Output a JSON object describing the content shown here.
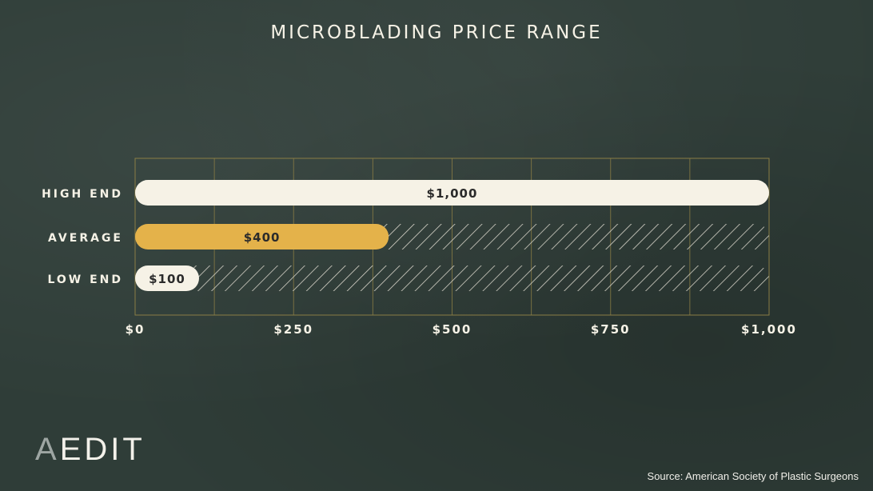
{
  "chart_data": {
    "type": "bar",
    "title": "MICROBLADING PRICE RANGE",
    "categories": [
      "HIGH END",
      "AVERAGE",
      "LOW END"
    ],
    "values": [
      1000,
      400,
      100
    ],
    "value_labels": [
      "$1,000",
      "$400",
      "$100"
    ],
    "xlim": [
      0,
      1000
    ],
    "xticks": [
      0,
      250,
      500,
      750,
      1000
    ],
    "xtick_labels": [
      "$0",
      "$250",
      "$500",
      "$750",
      "$1,000"
    ],
    "grid": true,
    "orientation": "horizontal",
    "colors": {
      "HIGH END": "#f6f2e6",
      "AVERAGE": "#e4b24a",
      "LOW END": "#f6f2e6",
      "grid": "#8a7d45",
      "hatch": "#d6d3c8",
      "background": "#2f3d38"
    }
  },
  "logo": {
    "first_letter": "A",
    "rest": "EDIT"
  },
  "source": "Source: American Society of Plastic Surgeons"
}
